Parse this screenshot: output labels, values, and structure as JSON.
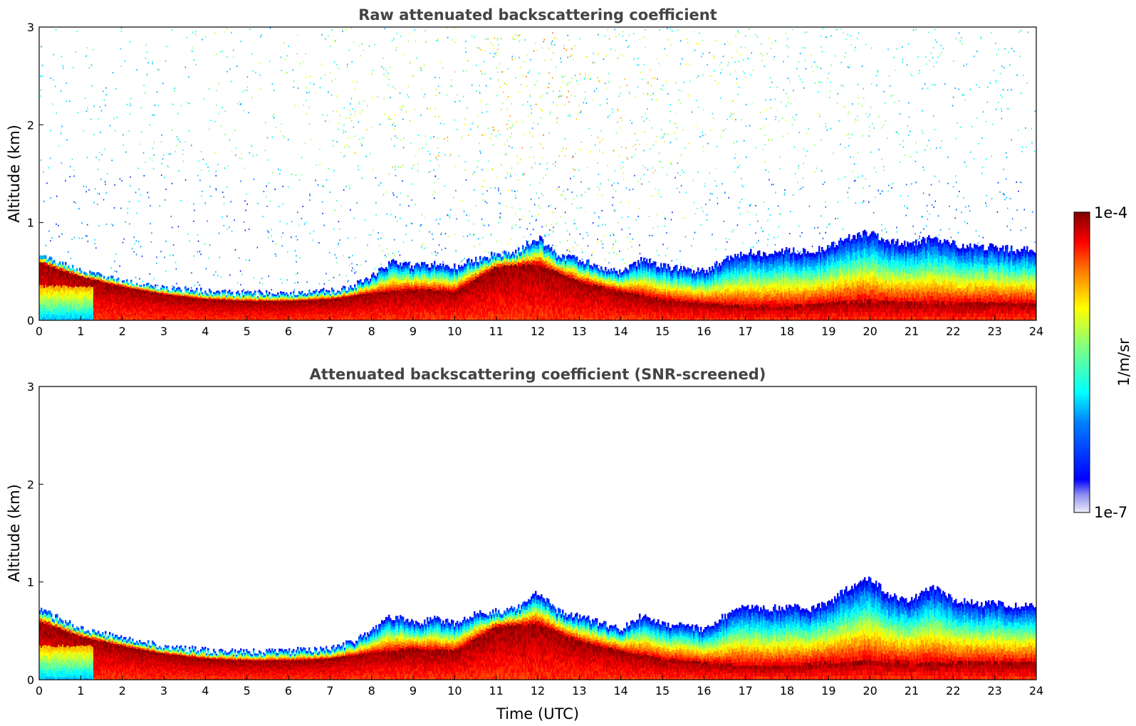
{
  "chart_data": [
    {
      "type": "heatmap",
      "title": "Raw attenuated backscattering coefficient",
      "xlabel": "",
      "ylabel": "Altitude (km)",
      "xlim": [
        0,
        24
      ],
      "ylim": [
        0,
        3
      ],
      "x_ticks": [
        "0",
        "1",
        "2",
        "3",
        "4",
        "5",
        "6",
        "7",
        "8",
        "9",
        "10",
        "11",
        "12",
        "13",
        "14",
        "15",
        "16",
        "17",
        "18",
        "19",
        "20",
        "21",
        "22",
        "23",
        "24"
      ],
      "y_ticks": [
        "0",
        "1",
        "2",
        "3"
      ],
      "noise": true,
      "aerosol_layer_top_km": [
        [
          0,
          0.7
        ],
        [
          0.5,
          0.58
        ],
        [
          1,
          0.5
        ],
        [
          2,
          0.4
        ],
        [
          3,
          0.33
        ],
        [
          4,
          0.29
        ],
        [
          5,
          0.27
        ],
        [
          6,
          0.28
        ],
        [
          7,
          0.3
        ],
        [
          7.5,
          0.34
        ],
        [
          8,
          0.45
        ],
        [
          8.5,
          0.6
        ],
        [
          9,
          0.55
        ],
        [
          9.5,
          0.58
        ],
        [
          10,
          0.55
        ],
        [
          10.5,
          0.62
        ],
        [
          11,
          0.68
        ],
        [
          11.5,
          0.7
        ],
        [
          12,
          0.85
        ],
        [
          12.5,
          0.65
        ],
        [
          13,
          0.62
        ],
        [
          13.5,
          0.55
        ],
        [
          14,
          0.5
        ],
        [
          14.5,
          0.62
        ],
        [
          15,
          0.55
        ],
        [
          15.5,
          0.52
        ],
        [
          16,
          0.5
        ],
        [
          16.5,
          0.62
        ],
        [
          17,
          0.7
        ],
        [
          17.5,
          0.68
        ],
        [
          18,
          0.72
        ],
        [
          18.5,
          0.7
        ],
        [
          19,
          0.75
        ],
        [
          19.5,
          0.85
        ],
        [
          20,
          0.9
        ],
        [
          20.5,
          0.8
        ],
        [
          21,
          0.78
        ],
        [
          21.5,
          0.85
        ],
        [
          22,
          0.78
        ],
        [
          22.5,
          0.75
        ],
        [
          23,
          0.75
        ],
        [
          23.5,
          0.72
        ],
        [
          24,
          0.72
        ]
      ],
      "peak_layer_top_km": [
        [
          0,
          0.6
        ],
        [
          1,
          0.45
        ],
        [
          2,
          0.35
        ],
        [
          3,
          0.27
        ],
        [
          4,
          0.22
        ],
        [
          5,
          0.2
        ],
        [
          6,
          0.2
        ],
        [
          7,
          0.22
        ],
        [
          8,
          0.28
        ],
        [
          9,
          0.32
        ],
        [
          10,
          0.3
        ],
        [
          11,
          0.55
        ],
        [
          12,
          0.58
        ],
        [
          13,
          0.4
        ],
        [
          14,
          0.3
        ],
        [
          15,
          0.22
        ],
        [
          16,
          0.18
        ],
        [
          17,
          0.15
        ],
        [
          18,
          0.15
        ],
        [
          19,
          0.18
        ],
        [
          20,
          0.2
        ],
        [
          21,
          0.18
        ],
        [
          22,
          0.18
        ],
        [
          23,
          0.18
        ],
        [
          24,
          0.18
        ]
      ]
    },
    {
      "type": "heatmap",
      "title": "Attenuated backscattering coefficient (SNR-screened)",
      "xlabel": "Time (UTC)",
      "ylabel": "Altitude (km)",
      "xlim": [
        0,
        24
      ],
      "ylim": [
        0,
        3
      ],
      "x_ticks": [
        "0",
        "1",
        "2",
        "3",
        "4",
        "5",
        "6",
        "7",
        "8",
        "9",
        "10",
        "11",
        "12",
        "13",
        "14",
        "15",
        "16",
        "17",
        "18",
        "19",
        "20",
        "21",
        "22",
        "23",
        "24"
      ],
      "y_ticks": [
        "0",
        "1",
        "2",
        "3"
      ],
      "noise": false,
      "aerosol_layer_top_km": [
        [
          0,
          0.72
        ],
        [
          0.5,
          0.62
        ],
        [
          1,
          0.52
        ],
        [
          2,
          0.42
        ],
        [
          3,
          0.34
        ],
        [
          4,
          0.3
        ],
        [
          5,
          0.28
        ],
        [
          6,
          0.29
        ],
        [
          7,
          0.32
        ],
        [
          7.5,
          0.38
        ],
        [
          8,
          0.5
        ],
        [
          8.5,
          0.65
        ],
        [
          9,
          0.58
        ],
        [
          9.5,
          0.62
        ],
        [
          10,
          0.58
        ],
        [
          10.5,
          0.68
        ],
        [
          11,
          0.7
        ],
        [
          11.5,
          0.72
        ],
        [
          12,
          0.9
        ],
        [
          12.5,
          0.7
        ],
        [
          13,
          0.65
        ],
        [
          13.5,
          0.58
        ],
        [
          14,
          0.52
        ],
        [
          14.5,
          0.65
        ],
        [
          15,
          0.58
        ],
        [
          15.5,
          0.55
        ],
        [
          16,
          0.52
        ],
        [
          16.5,
          0.65
        ],
        [
          17,
          0.75
        ],
        [
          17.5,
          0.72
        ],
        [
          18,
          0.75
        ],
        [
          18.5,
          0.72
        ],
        [
          19,
          0.78
        ],
        [
          19.5,
          0.95
        ],
        [
          20,
          1.05
        ],
        [
          20.5,
          0.85
        ],
        [
          21,
          0.82
        ],
        [
          21.5,
          0.95
        ],
        [
          22,
          0.82
        ],
        [
          22.5,
          0.78
        ],
        [
          23,
          0.78
        ],
        [
          23.5,
          0.75
        ],
        [
          24,
          0.75
        ]
      ],
      "peak_layer_top_km": [
        [
          0,
          0.6
        ],
        [
          1,
          0.45
        ],
        [
          2,
          0.35
        ],
        [
          3,
          0.27
        ],
        [
          4,
          0.22
        ],
        [
          5,
          0.2
        ],
        [
          6,
          0.2
        ],
        [
          7,
          0.22
        ],
        [
          8,
          0.28
        ],
        [
          9,
          0.32
        ],
        [
          10,
          0.3
        ],
        [
          11,
          0.55
        ],
        [
          12,
          0.58
        ],
        [
          13,
          0.4
        ],
        [
          14,
          0.3
        ],
        [
          15,
          0.22
        ],
        [
          16,
          0.18
        ],
        [
          17,
          0.15
        ],
        [
          18,
          0.15
        ],
        [
          19,
          0.18
        ],
        [
          20,
          0.2
        ],
        [
          21,
          0.18
        ],
        [
          22,
          0.18
        ],
        [
          23,
          0.18
        ],
        [
          24,
          0.18
        ]
      ]
    }
  ],
  "colorbar": {
    "max_label": "1e-4",
    "min_label": "1e-7",
    "unit_label": "1/m/sr",
    "colormap": "jet",
    "scale": "log"
  }
}
